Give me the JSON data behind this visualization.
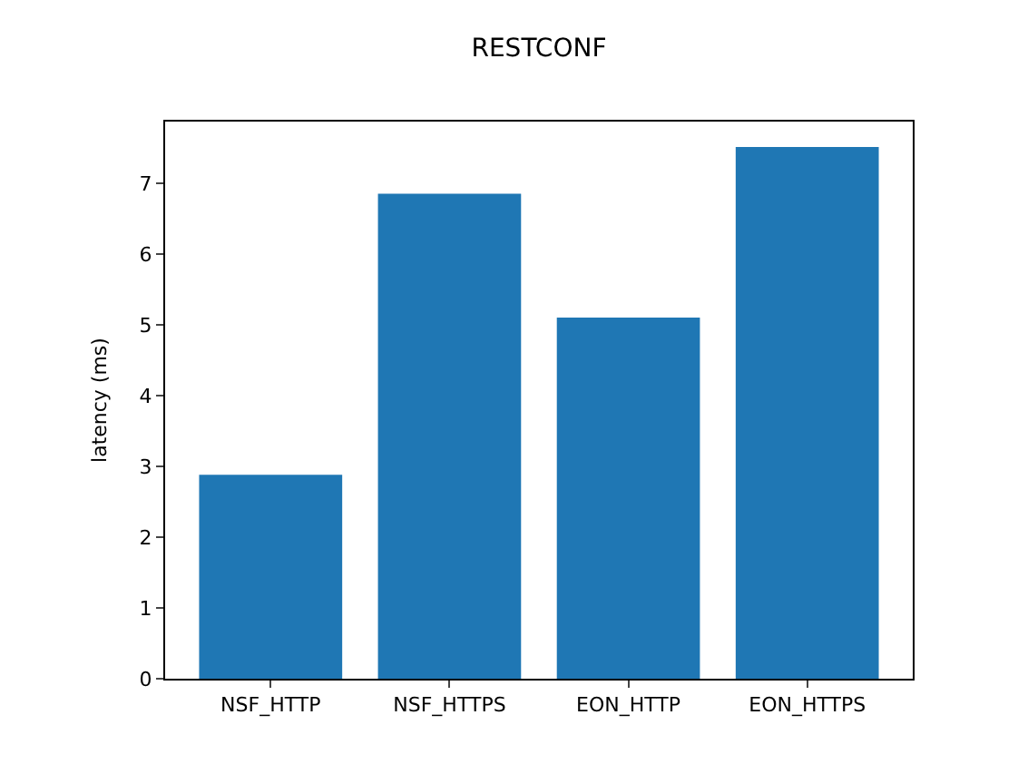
{
  "chart_data": {
    "type": "bar",
    "title": "RESTCONF",
    "ylabel": "latency (ms)",
    "categories": [
      "NSF_HTTP",
      "NSF_HTTPS",
      "EON_HTTP",
      "EON_HTTPS"
    ],
    "values": [
      2.88,
      6.85,
      5.1,
      7.51
    ],
    "color": "#1f77b4",
    "ylim": [
      0,
      7.87
    ],
    "yticks": [
      0,
      1,
      2,
      3,
      4,
      5,
      6,
      7
    ],
    "legend": false
  }
}
